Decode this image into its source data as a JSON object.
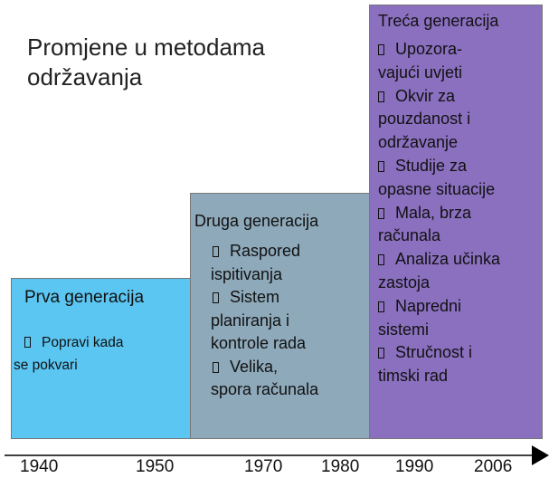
{
  "title": {
    "lines": [
      "Promjene u metodama",
      "održavanja"
    ]
  },
  "generations": [
    {
      "title": "Prva generacija",
      "items": [
        {
          "lines": [
            "Popravi kada",
            "se pokvari"
          ]
        }
      ]
    },
    {
      "title": "Druga generacija",
      "items": [
        {
          "lines": [
            "Raspored",
            "ispitivanja"
          ]
        },
        {
          "lines": [
            "Sistem",
            "planiranja i",
            "kontrole rada"
          ]
        },
        {
          "lines": [
            "Velika,",
            "spora računala"
          ]
        }
      ]
    },
    {
      "title": "Treća generacija",
      "items": [
        {
          "lines": [
            "Upozora-",
            "vajući uvjeti"
          ]
        },
        {
          "lines": [
            "Okvir za",
            "pouzdanost i",
            "održavanje"
          ]
        },
        {
          "lines": [
            "Studije za",
            "opasne situacije"
          ]
        },
        {
          "lines": [
            "Mala, brza",
            "računala"
          ]
        },
        {
          "lines": [
            "Analiza učinka",
            "zastoja"
          ]
        },
        {
          "lines": [
            "Napredni",
            "sistemi"
          ]
        },
        {
          "lines": [
            "Stručnost i",
            "timski rad"
          ]
        }
      ]
    }
  ],
  "timeline": {
    "years": [
      "1940",
      "1950",
      "1970",
      "1980",
      "1990",
      "2006"
    ]
  }
}
